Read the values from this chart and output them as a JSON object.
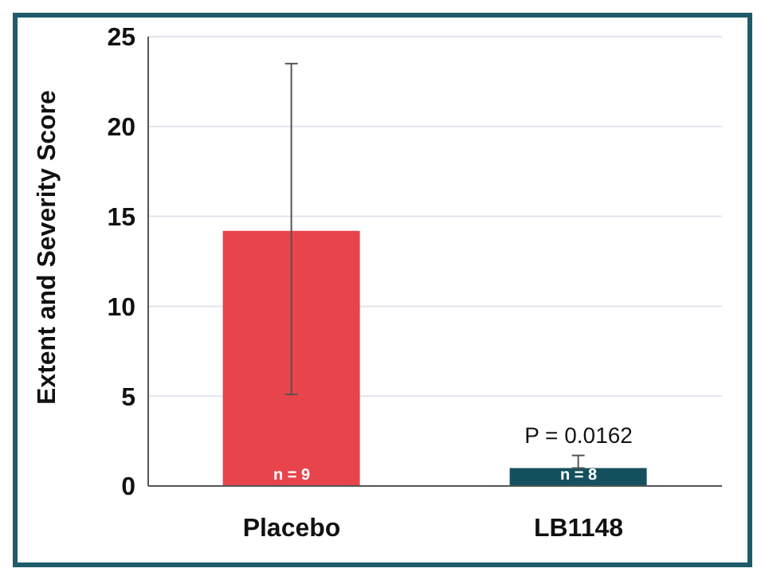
{
  "chart_data": {
    "type": "bar",
    "ylabel": "Extent and Severity Score",
    "categories": [
      "Placebo",
      "LB1148"
    ],
    "values": [
      14.2,
      1.0
    ],
    "colors": [
      "#e8444c",
      "#15505e"
    ],
    "errors": [
      [
        5.1,
        23.5
      ],
      [
        1.0,
        1.7
      ]
    ],
    "ylim": [
      0,
      25
    ],
    "yticks": [
      0,
      5,
      10,
      15,
      20,
      25
    ],
    "grid": "y",
    "legend": false,
    "annotations": [
      {
        "text": "n = 9",
        "x": "Placebo",
        "y": 0
      },
      {
        "text": "n = 8",
        "x": "LB1148",
        "y": 0
      },
      {
        "text": "P = 0.0162",
        "x": "LB1148",
        "y": 1.7
      }
    ]
  }
}
